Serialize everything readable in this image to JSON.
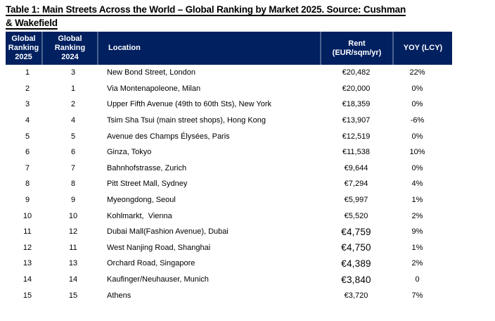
{
  "title": {
    "line1": "Table 1: Main Streets Across the World – Global Ranking by Market 2025. Source: Cushman",
    "line2": "& Wakefield"
  },
  "colors": {
    "page_bg": "#FFFFFF",
    "header_bg": "#002060",
    "header_text": "#FFFFFF",
    "header_divider": "#4D6390",
    "body_text": "#000000"
  },
  "table": {
    "columns": [
      {
        "id": "rank_2025",
        "label": "Global\nRanking\n2025"
      },
      {
        "id": "rank_2024",
        "label": "Global\nRanking\n2024"
      },
      {
        "id": "location",
        "label": "Location"
      },
      {
        "id": "rent",
        "label": "Rent\n(EUR/sqm/yr)"
      },
      {
        "id": "yoy",
        "label": "YOY (LCY)"
      }
    ],
    "rows": [
      {
        "rank_2025": "1",
        "rank_2024": "3",
        "location": "New Bond Street, London",
        "rent": "€20,482",
        "yoy": "22%",
        "rent_large": false
      },
      {
        "rank_2025": "2",
        "rank_2024": "1",
        "location": "Via Montenapoleone, Milan",
        "rent": "€20,000",
        "yoy": "0%",
        "rent_large": false
      },
      {
        "rank_2025": "3",
        "rank_2024": "2",
        "location": "Upper Fifth Avenue (49th to 60th Sts), New York",
        "rent": "€18,359",
        "yoy": "0%",
        "rent_large": false
      },
      {
        "rank_2025": "4",
        "rank_2024": "4",
        "location": "Tsim Sha Tsui (main street shops), Hong Kong",
        "rent": "€13,907",
        "yoy": "-6%",
        "rent_large": false
      },
      {
        "rank_2025": "5",
        "rank_2024": "5",
        "location": "Avenue des Champs Élysées, Paris",
        "rent": "€12,519",
        "yoy": "0%",
        "rent_large": false
      },
      {
        "rank_2025": "6",
        "rank_2024": "6",
        "location": "Ginza, Tokyo",
        "rent": "€11,538",
        "yoy": "10%",
        "rent_large": false
      },
      {
        "rank_2025": "7",
        "rank_2024": "7",
        "location": "Bahnhofstrasse, Zurich",
        "rent": "€9,644",
        "yoy": "0%",
        "rent_large": false
      },
      {
        "rank_2025": "8",
        "rank_2024": "8",
        "location": "Pitt Street Mall, Sydney",
        "rent": "€7,294",
        "yoy": "4%",
        "rent_large": false
      },
      {
        "rank_2025": "9",
        "rank_2024": "9",
        "location": "Myeongdong, Seoul",
        "rent": "€5,997",
        "yoy": "1%",
        "rent_large": false
      },
      {
        "rank_2025": "10",
        "rank_2024": "10",
        "location": "Kohlmarkt,  Vienna",
        "rent": "€5,520",
        "yoy": "2%",
        "rent_large": false
      },
      {
        "rank_2025": "11",
        "rank_2024": "12",
        "location": "Dubai Mall(Fashion Avenue), Dubai",
        "rent": "€4,759",
        "yoy": "9%",
        "rent_large": true
      },
      {
        "rank_2025": "12",
        "rank_2024": "11",
        "location": "West Nanjing Road, Shanghai",
        "rent": "€4,750",
        "yoy": "1%",
        "rent_large": true
      },
      {
        "rank_2025": "13",
        "rank_2024": "13",
        "location": "Orchard Road, Singapore",
        "rent": "€4,389",
        "yoy": "2%",
        "rent_large": true
      },
      {
        "rank_2025": "14",
        "rank_2024": "14",
        "location": "Kaufinger/Neuhauser, Munich",
        "rent": "€3,840",
        "yoy": "0",
        "rent_large": true
      },
      {
        "rank_2025": "15",
        "rank_2024": "15",
        "location": "Athens",
        "rent": "€3,720",
        "yoy": "7%",
        "rent_large": false
      }
    ]
  }
}
